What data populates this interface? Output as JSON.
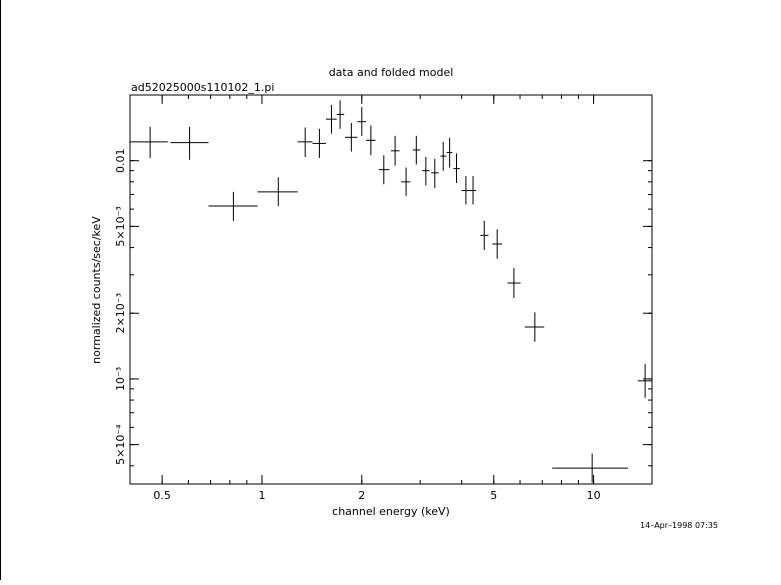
{
  "chart_data": {
    "type": "scatter",
    "title": "data and folded model",
    "subtitle": "ad52025000s110102_1.pi",
    "xlabel": "channel energy (keV)",
    "ylabel": "normalized counts/sec/keV",
    "timestamp": "14–Apr–1998 07:35",
    "x_scale": "log",
    "y_scale": "log",
    "xlim": [
      0.4,
      15
    ],
    "ylim": [
      0.00033,
      0.02
    ],
    "grid": false,
    "x_ticks": [
      {
        "value": 0.5,
        "label": "0.5"
      },
      {
        "value": 1,
        "label": "1"
      },
      {
        "value": 2,
        "label": "2"
      },
      {
        "value": 5,
        "label": "5"
      },
      {
        "value": 10,
        "label": "10"
      }
    ],
    "y_ticks": [
      {
        "value": 0.01,
        "label": "0.01"
      },
      {
        "value": 0.005,
        "label": "5×10⁻³"
      },
      {
        "value": 0.002,
        "label": "2×10⁻³"
      },
      {
        "value": 0.001,
        "label": "10⁻³"
      },
      {
        "value": 0.0005,
        "label": "5×10⁻⁴"
      }
    ],
    "points": [
      {
        "x": 0.46,
        "y": 0.0122,
        "xlo": 0.4,
        "xhi": 0.52,
        "ylo": 0.0103,
        "yhi": 0.0143
      },
      {
        "x": 0.605,
        "y": 0.0121,
        "xlo": 0.53,
        "xhi": 0.69,
        "ylo": 0.0101,
        "yhi": 0.0143
      },
      {
        "x": 0.82,
        "y": 0.0062,
        "xlo": 0.69,
        "xhi": 0.97,
        "ylo": 0.0053,
        "yhi": 0.0072
      },
      {
        "x": 1.12,
        "y": 0.0072,
        "xlo": 0.97,
        "xhi": 1.28,
        "ylo": 0.0062,
        "yhi": 0.0084
      },
      {
        "x": 1.35,
        "y": 0.0122,
        "xlo": 1.28,
        "xhi": 1.42,
        "ylo": 0.0104,
        "yhi": 0.0142
      },
      {
        "x": 1.49,
        "y": 0.012,
        "xlo": 1.42,
        "xhi": 1.56,
        "ylo": 0.0103,
        "yhi": 0.014
      },
      {
        "x": 1.62,
        "y": 0.0155,
        "xlo": 1.56,
        "xhi": 1.68,
        "ylo": 0.0133,
        "yhi": 0.018
      },
      {
        "x": 1.72,
        "y": 0.0163,
        "xlo": 1.68,
        "xhi": 1.77,
        "ylo": 0.014,
        "yhi": 0.0189
      },
      {
        "x": 1.86,
        "y": 0.0128,
        "xlo": 1.78,
        "xhi": 1.94,
        "ylo": 0.011,
        "yhi": 0.0149
      },
      {
        "x": 2.0,
        "y": 0.0151,
        "xlo": 1.94,
        "xhi": 2.06,
        "ylo": 0.013,
        "yhi": 0.0176
      },
      {
        "x": 2.13,
        "y": 0.0124,
        "xlo": 2.06,
        "xhi": 2.2,
        "ylo": 0.0106,
        "yhi": 0.0145
      },
      {
        "x": 2.33,
        "y": 0.0091,
        "xlo": 2.25,
        "xhi": 2.42,
        "ylo": 0.0078,
        "yhi": 0.0106
      },
      {
        "x": 2.52,
        "y": 0.0111,
        "xlo": 2.45,
        "xhi": 2.6,
        "ylo": 0.0095,
        "yhi": 0.013
      },
      {
        "x": 2.72,
        "y": 0.008,
        "xlo": 2.63,
        "xhi": 2.8,
        "ylo": 0.0069,
        "yhi": 0.0093
      },
      {
        "x": 2.92,
        "y": 0.0112,
        "xlo": 2.85,
        "xhi": 3.0,
        "ylo": 0.0096,
        "yhi": 0.013
      },
      {
        "x": 3.12,
        "y": 0.009,
        "xlo": 3.04,
        "xhi": 3.2,
        "ylo": 0.0077,
        "yhi": 0.0104
      },
      {
        "x": 3.32,
        "y": 0.0088,
        "xlo": 3.24,
        "xhi": 3.41,
        "ylo": 0.0075,
        "yhi": 0.0102
      },
      {
        "x": 3.52,
        "y": 0.0105,
        "xlo": 3.45,
        "xhi": 3.6,
        "ylo": 0.009,
        "yhi": 0.0122
      },
      {
        "x": 3.68,
        "y": 0.0109,
        "xlo": 3.61,
        "xhi": 3.75,
        "ylo": 0.0093,
        "yhi": 0.0127
      },
      {
        "x": 3.86,
        "y": 0.0092,
        "xlo": 3.78,
        "xhi": 3.95,
        "ylo": 0.0079,
        "yhi": 0.0108
      },
      {
        "x": 4.12,
        "y": 0.0073,
        "xlo": 4.0,
        "xhi": 4.25,
        "ylo": 0.0063,
        "yhi": 0.0085
      },
      {
        "x": 4.33,
        "y": 0.0073,
        "xlo": 4.25,
        "xhi": 4.42,
        "ylo": 0.0063,
        "yhi": 0.0085
      },
      {
        "x": 4.68,
        "y": 0.00455,
        "xlo": 4.55,
        "xhi": 4.82,
        "ylo": 0.0039,
        "yhi": 0.0053
      },
      {
        "x": 5.12,
        "y": 0.00415,
        "xlo": 4.95,
        "xhi": 5.3,
        "ylo": 0.00355,
        "yhi": 0.00485
      },
      {
        "x": 5.75,
        "y": 0.00275,
        "xlo": 5.5,
        "xhi": 6.02,
        "ylo": 0.00235,
        "yhi": 0.00322
      },
      {
        "x": 6.65,
        "y": 0.00173,
        "xlo": 6.2,
        "xhi": 7.1,
        "ylo": 0.00148,
        "yhi": 0.00202
      },
      {
        "x": 9.9,
        "y": 0.00039,
        "xlo": 7.5,
        "xhi": 12.7,
        "ylo": 0.000335,
        "yhi": 0.000455
      },
      {
        "x": 14.3,
        "y": 0.00098,
        "xlo": 13.6,
        "xhi": 15.0,
        "ylo": 0.00082,
        "yhi": 0.00117
      }
    ]
  }
}
